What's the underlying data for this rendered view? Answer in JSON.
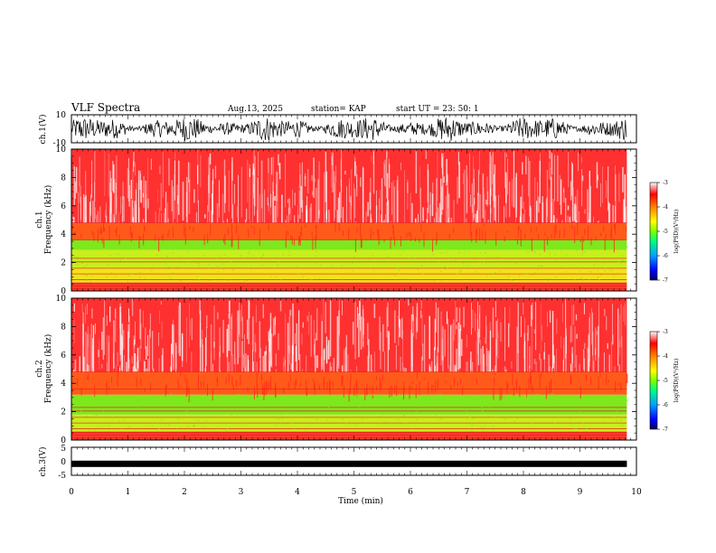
{
  "header": {
    "title": "VLF Spectra",
    "date": "Aug.13, 2025",
    "station": "station= KAP",
    "start": "start  UT  =   23: 50: 1"
  },
  "colors": {
    "spectrogram_bg": "#ff3030",
    "noise_speckle": "#ffffff",
    "band_yellow": "#f2e21a",
    "band_green": "#7de81c",
    "colormap": [
      "#000060",
      "#0000ff",
      "#00a0ff",
      "#00ff80",
      "#80ff00",
      "#ffff00",
      "#ff8000",
      "#ff0000",
      "#ffffff"
    ]
  },
  "chart_data": [
    {
      "type": "line",
      "name": "ch1-waveform",
      "ylabel": "ch.1(V)",
      "ylim": [
        -10,
        10
      ],
      "yticks": [
        "10",
        "-10"
      ],
      "xlim": [
        0,
        10
      ],
      "description_of_signal": "dense black oscillating trace spanning roughly -10 to 10 V"
    },
    {
      "type": "heatmap",
      "name": "ch1-spectrogram",
      "ylabel": "ch.1\nFrequency (kHz)",
      "ylabel_line1": "ch.1",
      "ylabel_line2": "Frequency  (kHz)",
      "ylim": [
        0,
        10
      ],
      "yticks": [
        "0",
        "2",
        "4",
        "6",
        "8",
        "10"
      ],
      "xlim": [
        0,
        10
      ],
      "colorbar": {
        "label": "log(PSD)(V²/Hz)",
        "range": [
          -7,
          -3
        ],
        "ticks": [
          "-3",
          "-4",
          "-5",
          "-6",
          "-7"
        ]
      },
      "bands_kHz": [
        {
          "from": 0,
          "to": 0.6,
          "level": "red-speckled"
        },
        {
          "from": 0.6,
          "to": 1.6,
          "level": "yellow"
        },
        {
          "from": 1.6,
          "to": 2.9,
          "level": "yellow-green"
        },
        {
          "from": 2.9,
          "to": 3.6,
          "level": "green"
        },
        {
          "from": 3.6,
          "to": 4.8,
          "level": "orange-red"
        },
        {
          "from": 4.8,
          "to": 10,
          "level": "red-white-speckle"
        }
      ]
    },
    {
      "type": "heatmap",
      "name": "ch2-spectrogram",
      "ylabel_line1": "ch.2",
      "ylabel_line2": "Frequency  (kHz)",
      "ylim": [
        0,
        10
      ],
      "yticks": [
        "0",
        "2",
        "4",
        "6",
        "8",
        "10"
      ],
      "xlim": [
        0,
        10
      ],
      "colorbar": {
        "label": "log(PSD)(V²/Hz)",
        "range": [
          -7,
          -3
        ],
        "ticks": [
          "-3",
          "-4",
          "-5",
          "-6",
          "-7"
        ]
      },
      "bands_kHz": [
        {
          "from": 0,
          "to": 0.6,
          "level": "red-speckled"
        },
        {
          "from": 0.6,
          "to": 1.8,
          "level": "yellow-green"
        },
        {
          "from": 1.8,
          "to": 3.2,
          "level": "green"
        },
        {
          "from": 3.2,
          "to": 4.8,
          "level": "orange-red"
        },
        {
          "from": 4.8,
          "to": 10,
          "level": "red-white-speckle"
        }
      ]
    },
    {
      "type": "line",
      "name": "ch3-waveform",
      "ylabel": "ch.3(V)",
      "ylim": [
        -5,
        5
      ],
      "yticks": [
        "5",
        "0",
        "-5"
      ],
      "xlim": [
        0,
        10
      ],
      "level": -0.9
    }
  ],
  "xaxis": {
    "label": "Time  (min)",
    "ticks": [
      "0",
      "1",
      "2",
      "3",
      "4",
      "5",
      "6",
      "7",
      "8",
      "9",
      "10"
    ],
    "data_end": 9.83
  }
}
